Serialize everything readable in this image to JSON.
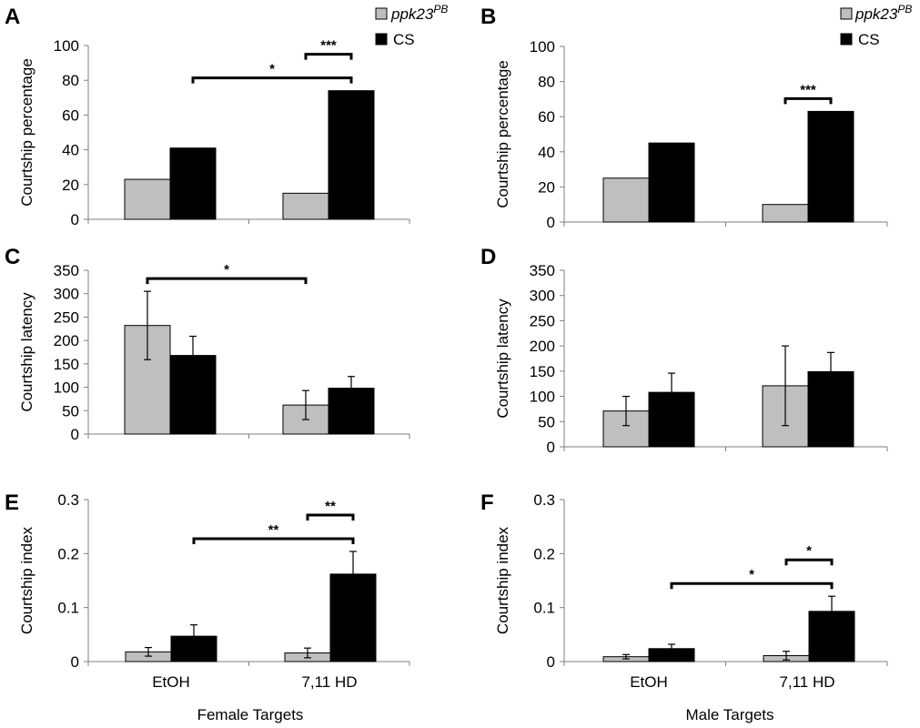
{
  "legend": {
    "series_a": "ppk23",
    "series_a_sup": "PB",
    "series_b": "CS",
    "colors": {
      "ppk23PB": "#bfbfbf",
      "CS": "#000000"
    }
  },
  "x_titles": {
    "left": "Female Targets",
    "right": "Male Targets"
  },
  "chart_data": [
    {
      "panel": "A",
      "type": "bar",
      "ylabel": "Courtship percentage",
      "ylim": [
        0,
        100
      ],
      "yticks": [
        "0",
        "20",
        "40",
        "60",
        "80",
        "100"
      ],
      "categories": [
        "EtOH",
        "7,11 HD"
      ],
      "series": [
        {
          "name": "ppk23PB",
          "values": [
            23,
            15
          ]
        },
        {
          "name": "CS",
          "values": [
            41,
            74
          ]
        }
      ],
      "annotations": [
        {
          "from": "CS@EtOH",
          "to": "CS@7,11 HD",
          "label": "*"
        },
        {
          "from": "ppk23PB@7,11 HD",
          "to": "CS@7,11 HD",
          "label": "***"
        }
      ]
    },
    {
      "panel": "B",
      "type": "bar",
      "ylabel": "Courtship percentage",
      "ylim": [
        0,
        100
      ],
      "yticks": [
        "0",
        "20",
        "40",
        "60",
        "80",
        "100"
      ],
      "categories": [
        "EtOH",
        "7,11 HD"
      ],
      "series": [
        {
          "name": "ppk23PB",
          "values": [
            25,
            10
          ]
        },
        {
          "name": "CS",
          "values": [
            45,
            63
          ]
        }
      ],
      "annotations": [
        {
          "from": "ppk23PB@7,11 HD",
          "to": "CS@7,11 HD",
          "label": "***"
        }
      ]
    },
    {
      "panel": "C",
      "type": "bar",
      "ylabel": "Courtship latency",
      "ylim": [
        0,
        350
      ],
      "yticks": [
        "0",
        "50",
        "100",
        "150",
        "200",
        "250",
        "300",
        "350"
      ],
      "categories": [
        "EtOH",
        "7,11 HD"
      ],
      "series": [
        {
          "name": "ppk23PB",
          "values": [
            232,
            62
          ],
          "errors": [
            73,
            31
          ]
        },
        {
          "name": "CS",
          "values": [
            168,
            98
          ],
          "errors": [
            41,
            25
          ]
        }
      ],
      "annotations": [
        {
          "from": "ppk23PB@EtOH",
          "to": "ppk23PB@7,11 HD",
          "label": "*"
        }
      ]
    },
    {
      "panel": "D",
      "type": "bar",
      "ylabel": "Courtship latency",
      "ylim": [
        0,
        350
      ],
      "yticks": [
        "0",
        "50",
        "100",
        "150",
        "200",
        "250",
        "300",
        "350"
      ],
      "categories": [
        "EtOH",
        "7,11 HD"
      ],
      "series": [
        {
          "name": "ppk23PB",
          "values": [
            71,
            121
          ],
          "errors": [
            29,
            79
          ]
        },
        {
          "name": "CS",
          "values": [
            108,
            149
          ],
          "errors": [
            38,
            38
          ]
        }
      ],
      "annotations": []
    },
    {
      "panel": "E",
      "type": "bar",
      "ylabel": "Courtship index",
      "ylim": [
        0,
        0.3
      ],
      "yticks": [
        "0",
        "0.1",
        "0.2",
        "0.3"
      ],
      "categories": [
        "EtOH",
        "7,11 HD"
      ],
      "series": [
        {
          "name": "ppk23PB",
          "values": [
            0.018,
            0.016
          ],
          "errors": [
            0.008,
            0.009
          ]
        },
        {
          "name": "CS",
          "values": [
            0.047,
            0.162
          ],
          "errors": [
            0.021,
            0.042
          ]
        }
      ],
      "annotations": [
        {
          "from": "CS@EtOH",
          "to": "CS@7,11 HD",
          "label": "**"
        },
        {
          "from": "ppk23PB@7,11 HD",
          "to": "CS@7,11 HD",
          "label": "**"
        }
      ]
    },
    {
      "panel": "F",
      "type": "bar",
      "ylabel": "Courtship index",
      "ylim": [
        0,
        0.3
      ],
      "yticks": [
        "0",
        "0.1",
        "0.2",
        "0.3"
      ],
      "categories": [
        "EtOH",
        "7,11 HD"
      ],
      "series": [
        {
          "name": "ppk23PB",
          "values": [
            0.009,
            0.011
          ],
          "errors": [
            0.004,
            0.008
          ]
        },
        {
          "name": "CS",
          "values": [
            0.024,
            0.093
          ],
          "errors": [
            0.008,
            0.028
          ]
        }
      ],
      "annotations": [
        {
          "from": "CS@EtOH",
          "to": "CS@7,11 HD",
          "label": "*"
        },
        {
          "from": "ppk23PB@7,11 HD",
          "to": "CS@7,11 HD",
          "label": "*"
        }
      ]
    }
  ]
}
